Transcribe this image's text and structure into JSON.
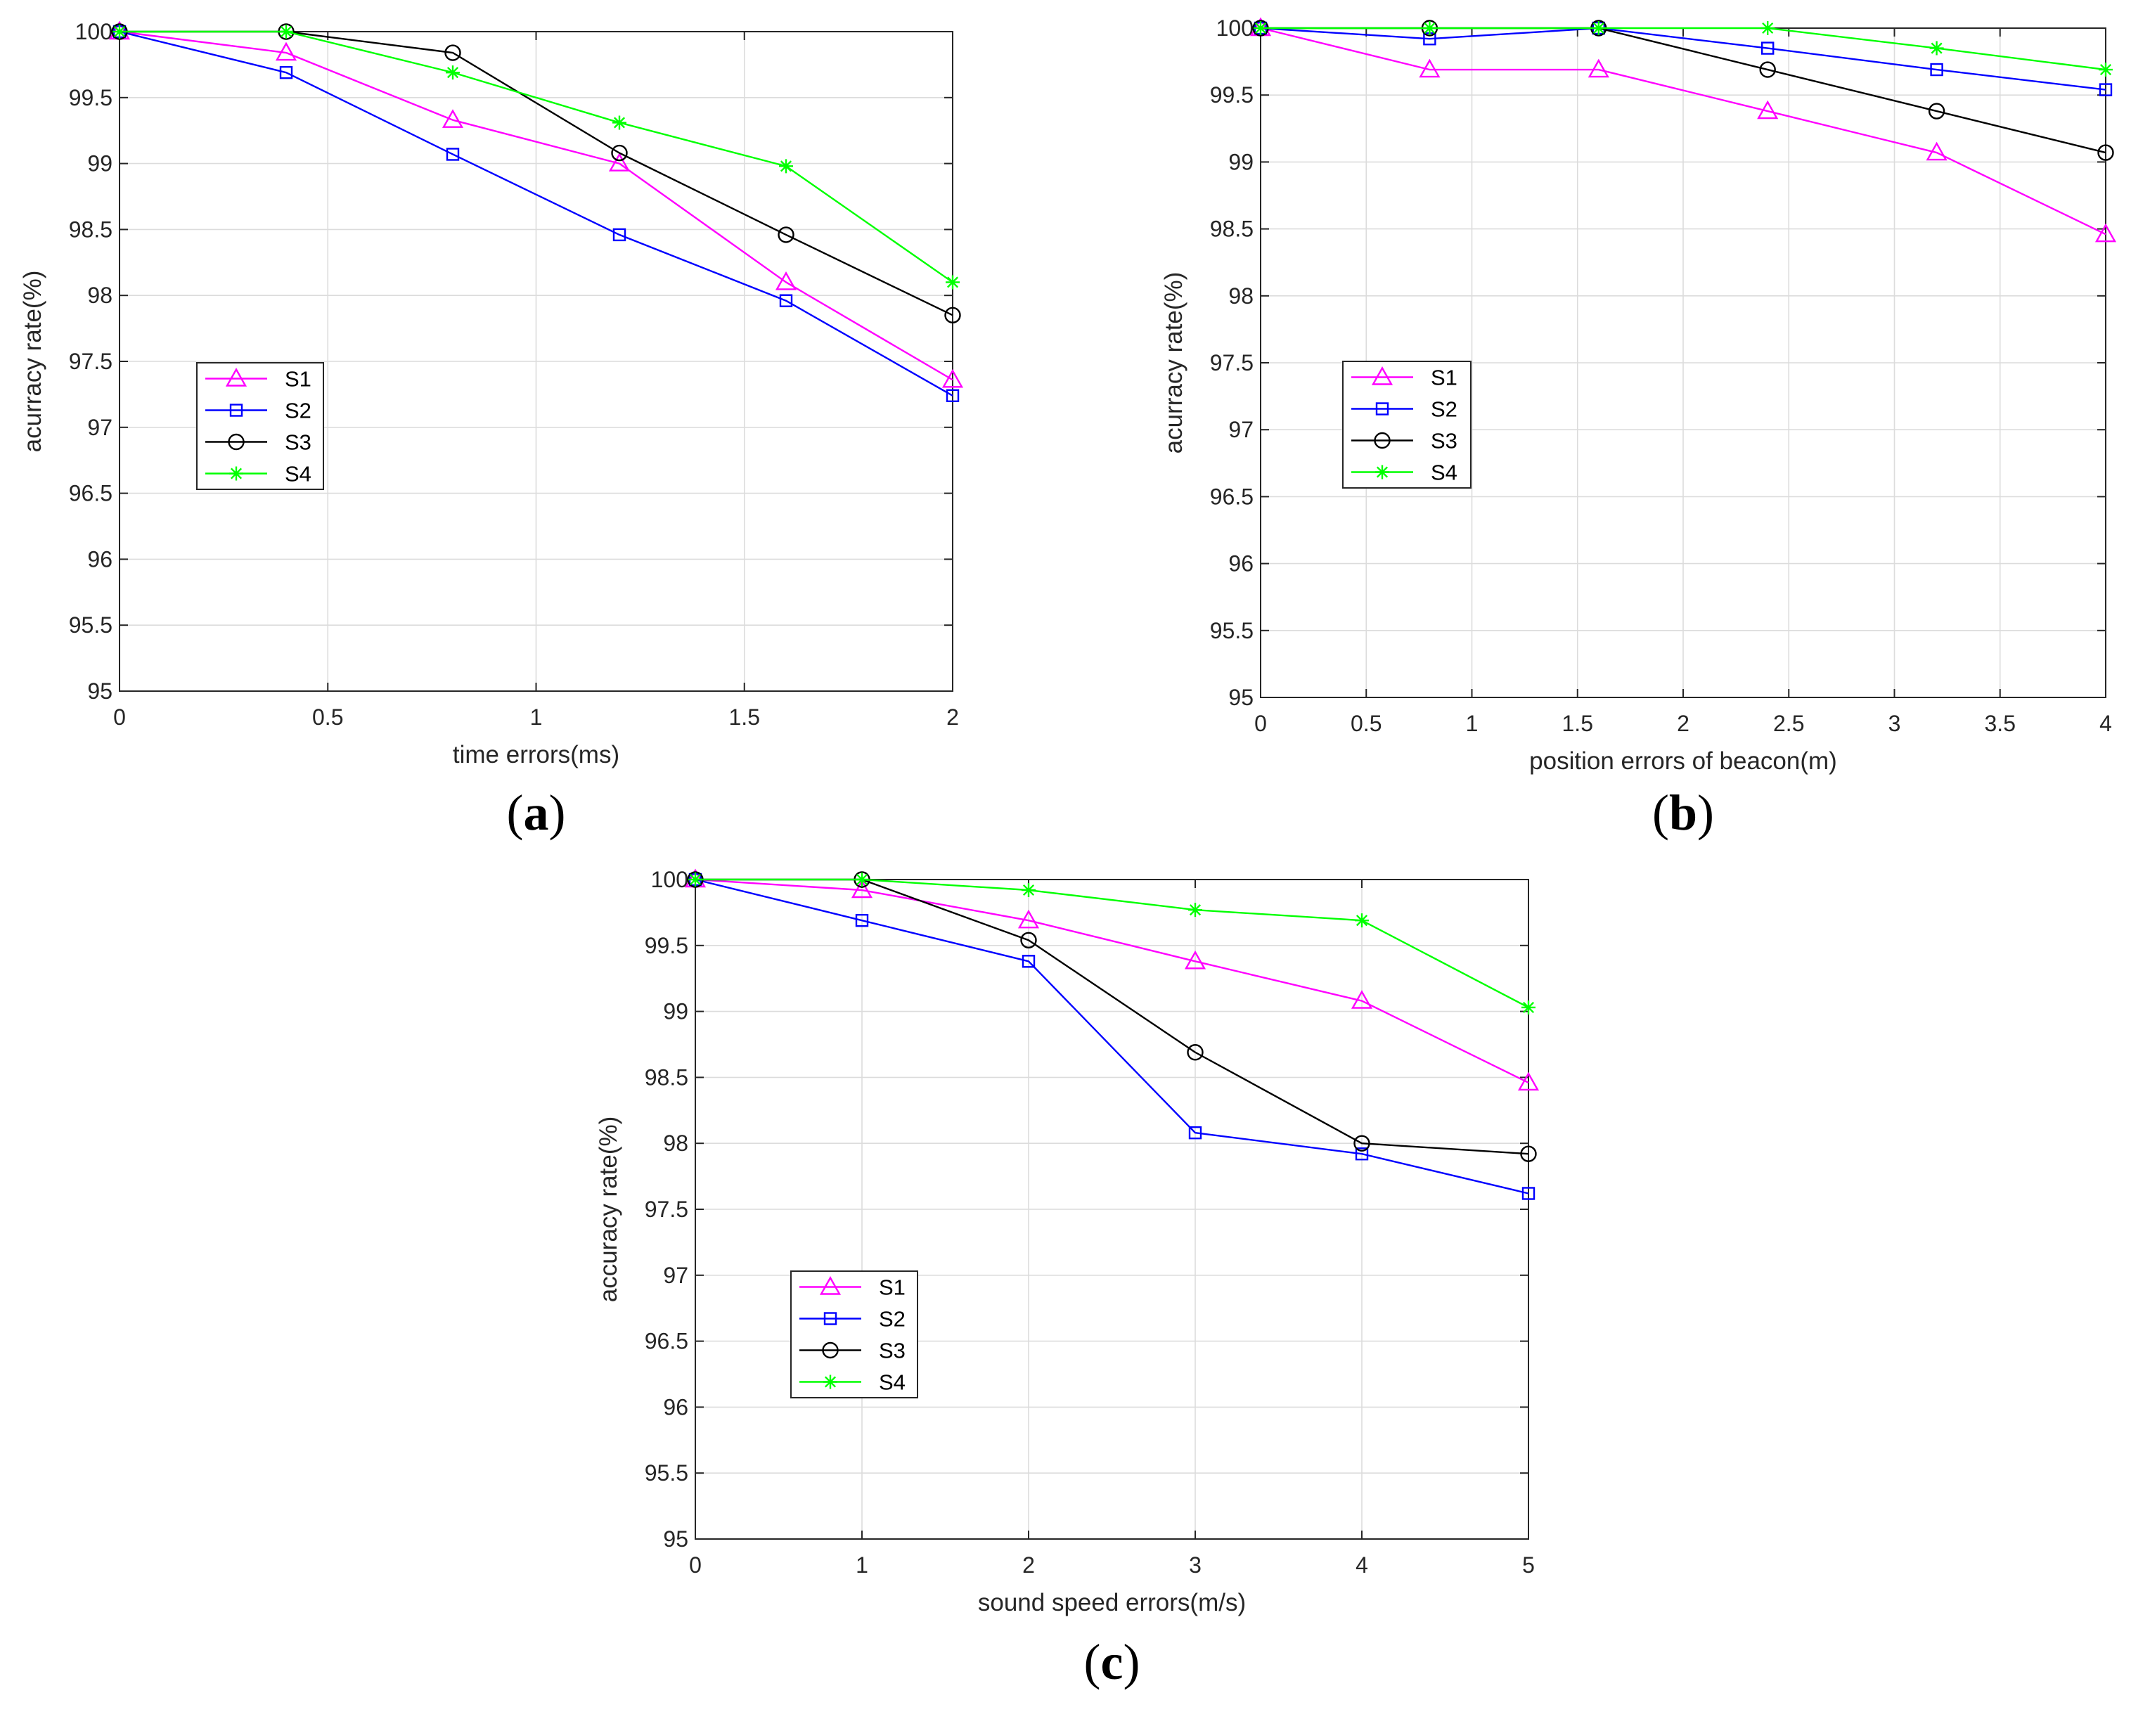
{
  "charts": [
    {
      "type": "line",
      "panel": "a",
      "caption": "(a)",
      "xlabel": "time errors(ms)",
      "ylabel": "acurracy rate(%)",
      "xlim": [
        0,
        2
      ],
      "ylim": [
        95,
        100
      ],
      "xticks": [
        0,
        0.5,
        1,
        1.5,
        2
      ],
      "xtick_labels": [
        "0",
        "0.5",
        "1",
        "1.5",
        "2"
      ],
      "yticks": [
        95,
        95.5,
        96,
        96.5,
        97,
        97.5,
        98,
        98.5,
        99,
        99.5,
        100
      ],
      "ytick_labels": [
        "95",
        "95.5",
        "96",
        "96.5",
        "97",
        "97.5",
        "98",
        "98.5",
        "99",
        "99.5",
        "100"
      ],
      "grid": true,
      "legend_position": "middle-left",
      "x": [
        0,
        0.4,
        0.8,
        1.2,
        1.6,
        2.0
      ],
      "series": [
        {
          "name": "S1",
          "color": "#ff00ff",
          "marker": "triangle",
          "values": [
            100,
            99.84,
            99.33,
            99.0,
            98.1,
            97.36
          ]
        },
        {
          "name": "S2",
          "color": "#0000ff",
          "marker": "square",
          "values": [
            100,
            99.69,
            99.07,
            98.46,
            97.96,
            97.24
          ]
        },
        {
          "name": "S3",
          "color": "#000000",
          "marker": "circle",
          "values": [
            100,
            100,
            99.84,
            99.08,
            98.46,
            97.85
          ]
        },
        {
          "name": "S4",
          "color": "#00ff00",
          "marker": "star",
          "values": [
            100,
            100,
            99.69,
            99.31,
            98.98,
            98.1
          ]
        }
      ]
    },
    {
      "type": "line",
      "panel": "b",
      "caption": "(b)",
      "xlabel": "position errors of beacon(m)",
      "ylabel": "acurracy rate(%)",
      "xlim": [
        0,
        4
      ],
      "ylim": [
        95,
        100
      ],
      "xticks": [
        0,
        0.5,
        1,
        1.5,
        2,
        2.5,
        3,
        3.5,
        4
      ],
      "xtick_labels": [
        "0",
        "0.5",
        "1",
        "1.5",
        "2",
        "2.5",
        "3",
        "3.5",
        "4"
      ],
      "yticks": [
        95,
        95.5,
        96,
        96.5,
        97,
        97.5,
        98,
        98.5,
        99,
        99.5,
        100
      ],
      "ytick_labels": [
        "95",
        "95.5",
        "96",
        "96.5",
        "97",
        "97.5",
        "98",
        "98.5",
        "99",
        "99.5",
        "100"
      ],
      "grid": true,
      "legend_position": "middle-left",
      "x": [
        0,
        0.8,
        1.6,
        2.4,
        3.2,
        4.0
      ],
      "series": [
        {
          "name": "S1",
          "color": "#ff00ff",
          "marker": "triangle",
          "values": [
            100,
            99.69,
            99.69,
            99.38,
            99.07,
            98.46
          ]
        },
        {
          "name": "S2",
          "color": "#0000ff",
          "marker": "square",
          "values": [
            100,
            99.92,
            100,
            99.85,
            99.69,
            99.54
          ]
        },
        {
          "name": "S3",
          "color": "#000000",
          "marker": "circle",
          "values": [
            100,
            100,
            100,
            99.69,
            99.38,
            99.07
          ]
        },
        {
          "name": "S4",
          "color": "#00ff00",
          "marker": "star",
          "values": [
            100,
            100,
            100,
            100,
            99.85,
            99.69
          ]
        }
      ]
    },
    {
      "type": "line",
      "panel": "c",
      "caption": "(c)",
      "xlabel": "sound speed errors(m/s)",
      "ylabel": "accuracy rate(%)",
      "xlim": [
        0,
        5
      ],
      "ylim": [
        95,
        100
      ],
      "xticks": [
        0,
        1,
        2,
        3,
        4,
        5
      ],
      "xtick_labels": [
        "0",
        "1",
        "2",
        "3",
        "4",
        "5"
      ],
      "yticks": [
        95,
        95.5,
        96,
        96.5,
        97,
        97.5,
        98,
        98.5,
        99,
        99.5,
        100
      ],
      "ytick_labels": [
        "95",
        "95.5",
        "96",
        "96.5",
        "97",
        "97.5",
        "98",
        "98.5",
        "99",
        "99.5",
        "100"
      ],
      "grid": true,
      "legend_position": "lower-left",
      "x": [
        0,
        1,
        2,
        3,
        4,
        5
      ],
      "series": [
        {
          "name": "S1",
          "color": "#ff00ff",
          "marker": "triangle",
          "values": [
            100,
            99.92,
            99.69,
            99.38,
            99.08,
            98.46
          ]
        },
        {
          "name": "S2",
          "color": "#0000ff",
          "marker": "square",
          "values": [
            100,
            99.69,
            99.38,
            98.08,
            97.92,
            97.62
          ]
        },
        {
          "name": "S3",
          "color": "#000000",
          "marker": "circle",
          "values": [
            100,
            100,
            99.54,
            98.69,
            98.0,
            97.92
          ]
        },
        {
          "name": "S4",
          "color": "#00ff00",
          "marker": "star",
          "values": [
            100,
            100,
            99.92,
            99.77,
            99.69,
            99.03
          ]
        }
      ]
    }
  ]
}
